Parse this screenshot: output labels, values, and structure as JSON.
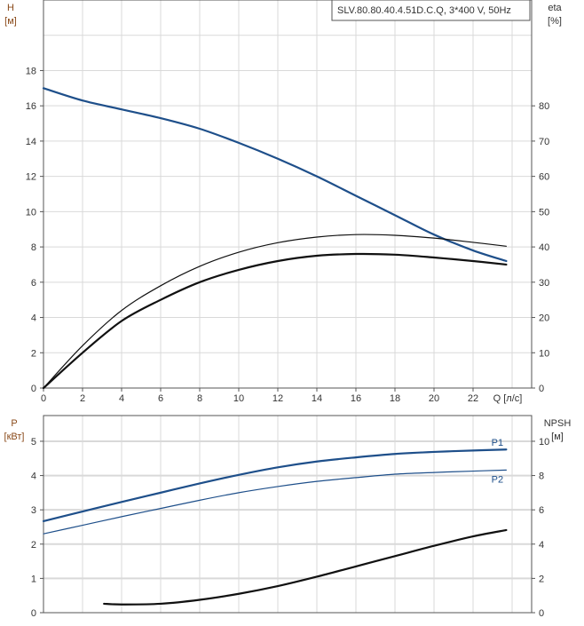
{
  "colors": {
    "blue": "#1e4f8a",
    "black": "#111111",
    "grid": "#d9d9d9",
    "axis_label_left": "#8a4a1a"
  },
  "chart_data": [
    {
      "type": "line",
      "legend_box": "SLV.80.80.40.4.51D.C.Q, 3*400 V, 50Hz",
      "xlabel": "Q [л/с]",
      "ylabel_left": {
        "name": "H",
        "unit": "[м]"
      },
      "ylabel_right": {
        "name": "eta",
        "unit": "[%]"
      },
      "xlim": [
        0,
        25
      ],
      "ylim_left": [
        0,
        22
      ],
      "ylim_right": [
        0,
        110
      ],
      "x_ticks": [
        0,
        2,
        4,
        6,
        8,
        10,
        12,
        14,
        16,
        18,
        20,
        22
      ],
      "y_left_ticks": [
        0,
        2,
        4,
        6,
        8,
        10,
        12,
        14,
        16,
        18
      ],
      "y_right_ticks": [
        0,
        10,
        20,
        30,
        40,
        50,
        60,
        70,
        80
      ],
      "grid": true,
      "series": [
        {
          "axis": "left",
          "color": "blue",
          "width": 2.2,
          "x": [
            0,
            2,
            4,
            6,
            8,
            10,
            12,
            14,
            16,
            18,
            20,
            22,
            23.7
          ],
          "y": [
            17,
            16.3,
            15.8,
            15.3,
            14.7,
            13.9,
            13.0,
            12.0,
            10.9,
            9.8,
            8.7,
            7.8,
            7.2
          ]
        },
        {
          "axis": "right",
          "color": "black",
          "width": 1.2,
          "x": [
            0,
            2,
            4,
            6,
            8,
            10,
            12,
            14,
            16,
            18,
            20,
            22,
            23.7
          ],
          "y": [
            0,
            12,
            22,
            29,
            34.5,
            38.5,
            41.2,
            42.8,
            43.5,
            43.3,
            42.5,
            41.3,
            40.2
          ]
        },
        {
          "axis": "right",
          "color": "black",
          "width": 2.2,
          "x": [
            0,
            2,
            4,
            6,
            8,
            10,
            12,
            14,
            16,
            18,
            20,
            22,
            23.7
          ],
          "y": [
            0,
            10,
            19,
            25,
            30,
            33.5,
            36,
            37.5,
            38,
            37.8,
            37,
            36,
            35
          ]
        }
      ]
    },
    {
      "type": "line",
      "ylabel_left": {
        "name": "P",
        "unit": "[кВт]"
      },
      "ylabel_right": {
        "name": "NPSH",
        "unit": "[м]"
      },
      "xlim": [
        0,
        25
      ],
      "ylim_left": [
        0,
        5.75
      ],
      "ylim_right": [
        0,
        11.5
      ],
      "y_left_ticks": [
        0,
        1,
        2,
        3,
        4,
        5
      ],
      "y_right_ticks": [
        0,
        2,
        4,
        6,
        8,
        10
      ],
      "grid": true,
      "series": [
        {
          "name": "P1",
          "axis": "left",
          "color": "blue",
          "width": 2.2,
          "x": [
            0,
            2,
            4,
            6,
            8,
            10,
            12,
            14,
            16,
            18,
            20,
            22,
            23.7
          ],
          "y": [
            2.67,
            2.95,
            3.23,
            3.5,
            3.77,
            4.02,
            4.24,
            4.41,
            4.53,
            4.63,
            4.69,
            4.73,
            4.76
          ]
        },
        {
          "name": "P2",
          "axis": "left",
          "color": "blue",
          "width": 1.2,
          "x": [
            0,
            2,
            4,
            6,
            8,
            10,
            12,
            14,
            16,
            18,
            20,
            22,
            23.7
          ],
          "y": [
            2.3,
            2.55,
            2.8,
            3.04,
            3.28,
            3.5,
            3.68,
            3.83,
            3.94,
            4.04,
            4.09,
            4.13,
            4.16
          ]
        },
        {
          "axis": "right",
          "color": "black",
          "width": 2.2,
          "x": [
            3.1,
            4,
            6,
            8,
            10,
            12,
            14,
            16,
            18,
            20,
            22,
            23.7
          ],
          "y": [
            0.52,
            0.48,
            0.52,
            0.75,
            1.1,
            1.55,
            2.1,
            2.7,
            3.3,
            3.9,
            4.45,
            4.82
          ]
        }
      ]
    }
  ]
}
